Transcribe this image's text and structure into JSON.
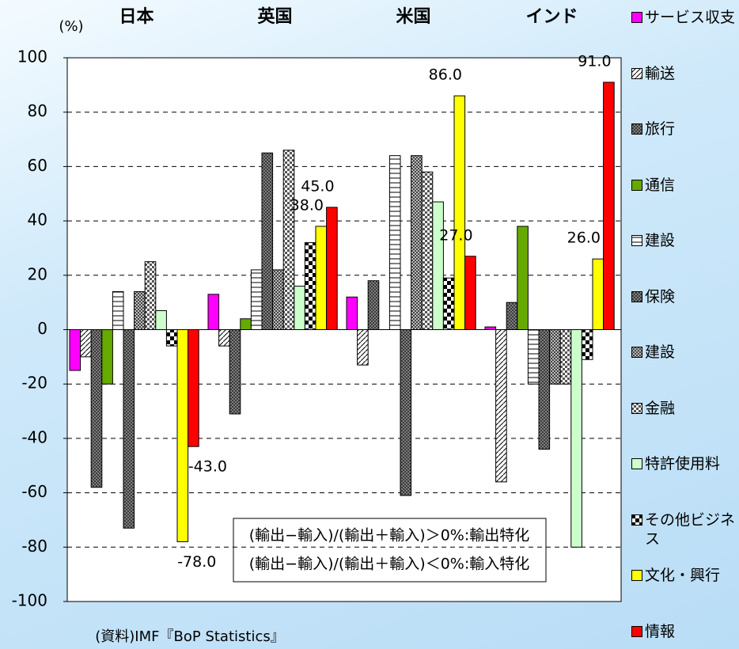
{
  "chart_data": {
    "type": "bar",
    "unit_label": "(%)",
    "categories": [
      "日本",
      "英国",
      "米国",
      "インド"
    ],
    "series": [
      {
        "name": "サービス収支",
        "color": "#ff00ff",
        "pattern": "solid",
        "values": [
          -15,
          13,
          12,
          1
        ]
      },
      {
        "name": "輸送",
        "color": "#ffffff",
        "pattern": "diagonal",
        "values": [
          -10,
          -6,
          -13,
          -56
        ]
      },
      {
        "name": "旅行",
        "color": "#808080",
        "pattern": "crosshatch",
        "values": [
          -58,
          -31,
          18,
          10
        ]
      },
      {
        "name": "通信",
        "color": "#66aa00",
        "pattern": "solid",
        "values": [
          -20,
          4,
          0,
          38
        ]
      },
      {
        "name": "建設",
        "color": "#ffffff",
        "pattern": "horizontal",
        "values": [
          14,
          22,
          64,
          -20
        ]
      },
      {
        "name": "保険",
        "color": "#808080",
        "pattern": "crosshatch",
        "values": [
          -73,
          65,
          -61,
          -44
        ]
      },
      {
        "name": "建設",
        "color": "#808080",
        "pattern": "smallchecker",
        "values": [
          14,
          22,
          64,
          -20
        ]
      },
      {
        "name": "金融",
        "color": "#808080",
        "pattern": "checker",
        "values": [
          25,
          66,
          58,
          -20
        ]
      },
      {
        "name": "特許使用料",
        "color": "#ccffcc",
        "pattern": "solid",
        "values": [
          7,
          16,
          47,
          -80
        ]
      },
      {
        "name": "その他ビジネス",
        "color": "#000000",
        "pattern": "bigchecker",
        "values": [
          -6,
          32,
          19,
          -11
        ]
      },
      {
        "name": "文化・興行",
        "color": "#ffff00",
        "pattern": "solid",
        "values": [
          -78,
          38,
          86,
          26
        ],
        "value_labels": [
          "-78.0",
          "38.0",
          "86.0",
          "26.0"
        ]
      },
      {
        "name": "情報",
        "color": "#ff0000",
        "pattern": "solid",
        "values": [
          -43,
          45,
          27,
          91
        ],
        "value_labels": [
          "-43.0",
          "45.0",
          "27.0",
          "91.0"
        ]
      }
    ],
    "ylim": [
      -100,
      100
    ],
    "yticks": [
      -100,
      -80,
      -60,
      -40,
      -20,
      0,
      20,
      40,
      60,
      80,
      100
    ],
    "grid": true,
    "annotation": [
      "(輸出−輸入)/(輸出＋輸入)＞0%:輸出特化",
      "(輸出−輸入)/(輸出＋輸入)＜0%:輸入特化"
    ],
    "source": "(資料)IMF『BoP Statistics』"
  }
}
